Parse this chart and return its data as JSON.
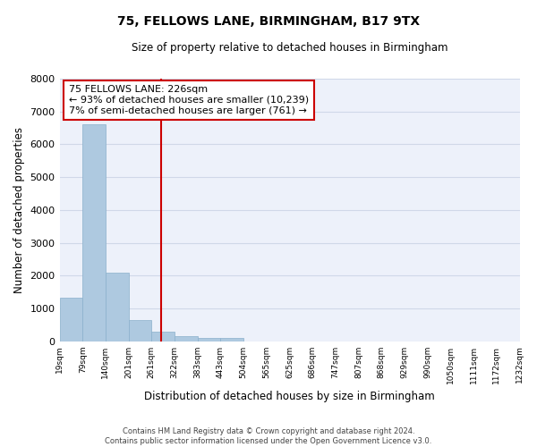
{
  "title": "75, FELLOWS LANE, BIRMINGHAM, B17 9TX",
  "subtitle": "Size of property relative to detached houses in Birmingham",
  "bar_values": [
    1320,
    6600,
    2080,
    650,
    300,
    150,
    100,
    100,
    0,
    0,
    0,
    0,
    0,
    0,
    0,
    0,
    0,
    0,
    0,
    0
  ],
  "categories": [
    "19sqm",
    "79sqm",
    "140sqm",
    "201sqm",
    "261sqm",
    "322sqm",
    "383sqm",
    "443sqm",
    "504sqm",
    "565sqm",
    "625sqm",
    "686sqm",
    "747sqm",
    "807sqm",
    "868sqm",
    "929sqm",
    "990sqm",
    "1050sqm",
    "1111sqm",
    "1172sqm",
    "1232sqm"
  ],
  "bar_color": "#aec9e0",
  "bar_edge_color": "#8ab0cc",
  "grid_color": "#d0d8e8",
  "background_color": "#edf1fa",
  "ylabel": "Number of detached properties",
  "xlabel": "Distribution of detached houses by size in Birmingham",
  "ylim": [
    0,
    8000
  ],
  "yticks": [
    0,
    1000,
    2000,
    3000,
    4000,
    5000,
    6000,
    7000,
    8000
  ],
  "property_line_color": "#cc0000",
  "annotation_title": "75 FELLOWS LANE: 226sqm",
  "annotation_line1": "← 93% of detached houses are smaller (10,239)",
  "annotation_line2": "7% of semi-detached houses are larger (761) →",
  "annotation_box_color": "#cc0000",
  "footer_line1": "Contains HM Land Registry data © Crown copyright and database right 2024.",
  "footer_line2": "Contains public sector information licensed under the Open Government Licence v3.0."
}
